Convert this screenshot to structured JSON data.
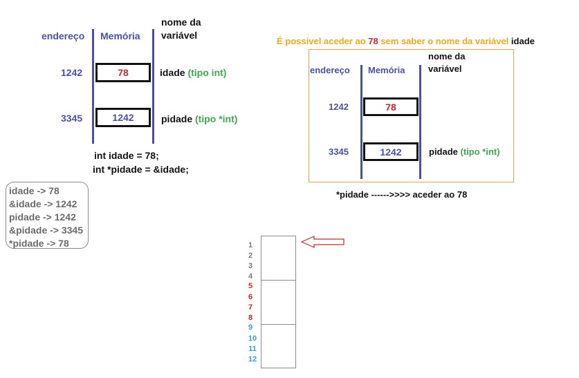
{
  "left": {
    "header_address": "endereço",
    "header_memory": "Memória",
    "header_name_line1": "nome da",
    "header_name_line2": "variável",
    "rows": [
      {
        "address": "1242",
        "value": "78",
        "name": "idade",
        "type": "(tipo int)"
      },
      {
        "address": "3345",
        "value": "1242",
        "name": "pidade",
        "type": "(tipo *int)"
      }
    ],
    "code": [
      "int idade = 78;",
      "int *pidade = &idade;"
    ]
  },
  "note": [
    "idade -> 78",
    "&idade -> 1242",
    "pidade -> 1242",
    "&pidade -> 3345",
    "*pidade -> 78"
  ],
  "right": {
    "title_part1": "É possível aceder ao ",
    "title_number": "78",
    "title_part2": " sem saber o nome da variável ",
    "title_part3": "idade",
    "header_address": "endereço",
    "header_memory": "Memória",
    "header_name_line1": "nome da",
    "header_name_line2": "variável",
    "rows": [
      {
        "address": "1242",
        "value": "78"
      },
      {
        "address": "3345",
        "value": "1242",
        "name": "pidade",
        "type": "(tipo *int)"
      }
    ],
    "caption": "*pidade ------>>>> aceder ao 78"
  },
  "memory_strip": {
    "numbers": [
      "1",
      "2",
      "3",
      "4",
      "5",
      "6",
      "7",
      "8",
      "9",
      "10",
      "11",
      "12"
    ],
    "number_colors": {
      "gray": "#7a7a7a",
      "red": "#c8262c",
      "blue": "#2aa3d0"
    },
    "arrow_color": "#b23030"
  },
  "colors": {
    "blue": "#4a50a8",
    "green": "#3aaa4a",
    "red": "#c8262c",
    "orange": "#f2a81c",
    "frame": "#e0a24a"
  }
}
